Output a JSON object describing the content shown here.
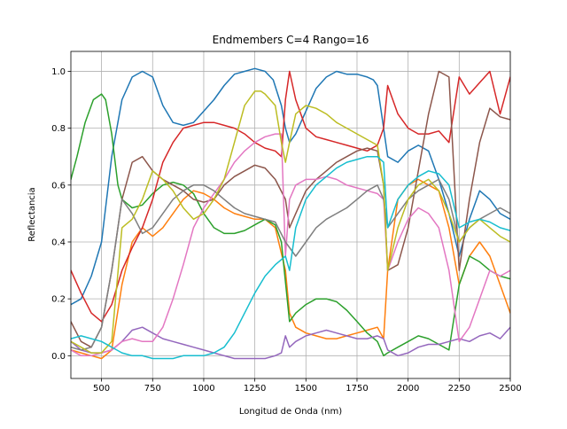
{
  "chart_data": {
    "type": "line",
    "title": "Endmembers C=4 Rango=16",
    "xlabel": "Longitud de Onda (nm)",
    "ylabel": "Reflectancia",
    "xlim": [
      350,
      2500
    ],
    "ylim": [
      -0.08,
      1.07
    ],
    "xticks": [
      500,
      750,
      1000,
      1250,
      1500,
      1750,
      2000,
      2250,
      2500
    ],
    "xtick_labels": [
      "500",
      "750",
      "1000",
      "1250",
      "1500",
      "1750",
      "2000",
      "2250",
      "2500"
    ],
    "yticks": [
      0.0,
      0.2,
      0.4,
      0.6,
      0.8,
      1.0
    ],
    "ytick_labels": [
      "0.0",
      "0.2",
      "0.4",
      "0.6",
      "0.8",
      "1.0"
    ],
    "grid": true,
    "legend": "none",
    "colors": [
      "#1f77b4",
      "#ff7f0e",
      "#2ca02c",
      "#d62728",
      "#9467bd",
      "#8c564b",
      "#e377c2",
      "#7f7f7f",
      "#bcbd22",
      "#17becf"
    ],
    "series": [
      {
        "color": "#1f77b4",
        "x": [
          350,
          400,
          450,
          500,
          550,
          600,
          650,
          700,
          750,
          800,
          850,
          900,
          950,
          1000,
          1050,
          1100,
          1150,
          1200,
          1250,
          1300,
          1340,
          1380,
          1400,
          1420,
          1450,
          1500,
          1550,
          1600,
          1650,
          1700,
          1750,
          1800,
          1830,
          1850,
          1870,
          1900,
          1950,
          2000,
          2050,
          2100,
          2150,
          2200,
          2250,
          2300,
          2350,
          2400,
          2450,
          2500
        ],
        "y": [
          0.18,
          0.2,
          0.28,
          0.4,
          0.7,
          0.9,
          0.98,
          1.0,
          0.98,
          0.88,
          0.82,
          0.81,
          0.82,
          0.86,
          0.9,
          0.95,
          0.99,
          1.0,
          1.01,
          1.0,
          0.97,
          0.88,
          0.8,
          0.75,
          0.78,
          0.86,
          0.94,
          0.98,
          1.0,
          0.99,
          0.99,
          0.98,
          0.97,
          0.95,
          0.85,
          0.7,
          0.68,
          0.72,
          0.74,
          0.72,
          0.62,
          0.5,
          0.35,
          0.48,
          0.58,
          0.55,
          0.5,
          0.48
        ]
      },
      {
        "color": "#ff7f0e",
        "x": [
          350,
          400,
          450,
          500,
          550,
          600,
          650,
          700,
          750,
          800,
          850,
          900,
          950,
          1000,
          1050,
          1100,
          1150,
          1200,
          1250,
          1300,
          1350,
          1400,
          1420,
          1450,
          1500,
          1550,
          1600,
          1650,
          1700,
          1750,
          1800,
          1850,
          1880,
          1900,
          1950,
          2000,
          2050,
          2100,
          2150,
          2200,
          2250,
          2300,
          2350,
          2400,
          2450,
          2500
        ],
        "y": [
          0.02,
          0.01,
          0.0,
          -0.01,
          0.02,
          0.25,
          0.4,
          0.45,
          0.42,
          0.45,
          0.5,
          0.55,
          0.58,
          0.57,
          0.55,
          0.52,
          0.5,
          0.49,
          0.48,
          0.48,
          0.45,
          0.3,
          0.15,
          0.1,
          0.08,
          0.07,
          0.06,
          0.06,
          0.07,
          0.08,
          0.09,
          0.1,
          0.06,
          0.3,
          0.55,
          0.6,
          0.62,
          0.6,
          0.58,
          0.45,
          0.25,
          0.35,
          0.4,
          0.35,
          0.25,
          0.15
        ]
      },
      {
        "color": "#2ca02c",
        "x": [
          350,
          380,
          420,
          460,
          500,
          520,
          550,
          580,
          600,
          650,
          700,
          750,
          800,
          850,
          900,
          950,
          1000,
          1050,
          1100,
          1150,
          1200,
          1250,
          1300,
          1350,
          1380,
          1420,
          1450,
          1500,
          1550,
          1600,
          1650,
          1700,
          1750,
          1800,
          1850,
          1880,
          1900,
          1950,
          2000,
          2050,
          2100,
          2150,
          2200,
          2250,
          2300,
          2350,
          2400,
          2450,
          2500
        ],
        "y": [
          0.62,
          0.7,
          0.82,
          0.9,
          0.92,
          0.9,
          0.78,
          0.6,
          0.55,
          0.52,
          0.53,
          0.57,
          0.6,
          0.61,
          0.6,
          0.57,
          0.5,
          0.45,
          0.43,
          0.43,
          0.44,
          0.46,
          0.48,
          0.46,
          0.4,
          0.12,
          0.15,
          0.18,
          0.2,
          0.2,
          0.19,
          0.16,
          0.12,
          0.08,
          0.05,
          0.0,
          0.01,
          0.03,
          0.05,
          0.07,
          0.06,
          0.04,
          0.02,
          0.25,
          0.35,
          0.33,
          0.3,
          0.28,
          0.27
        ]
      },
      {
        "color": "#d62728",
        "x": [
          350,
          400,
          450,
          500,
          550,
          600,
          650,
          700,
          750,
          800,
          850,
          900,
          950,
          1000,
          1050,
          1100,
          1150,
          1200,
          1250,
          1300,
          1350,
          1380,
          1400,
          1420,
          1450,
          1500,
          1550,
          1600,
          1650,
          1700,
          1750,
          1800,
          1850,
          1880,
          1900,
          1950,
          2000,
          2050,
          2100,
          2150,
          2200,
          2250,
          2300,
          2350,
          2400,
          2450,
          2500
        ],
        "y": [
          0.3,
          0.22,
          0.15,
          0.12,
          0.18,
          0.3,
          0.38,
          0.45,
          0.55,
          0.68,
          0.75,
          0.8,
          0.81,
          0.82,
          0.82,
          0.81,
          0.8,
          0.78,
          0.75,
          0.73,
          0.72,
          0.7,
          0.9,
          1.0,
          0.9,
          0.8,
          0.77,
          0.76,
          0.75,
          0.74,
          0.73,
          0.72,
          0.74,
          0.8,
          0.95,
          0.85,
          0.8,
          0.78,
          0.78,
          0.79,
          0.75,
          0.98,
          0.92,
          0.96,
          1.0,
          0.85,
          0.98
        ]
      },
      {
        "color": "#9467bd",
        "x": [
          350,
          400,
          450,
          500,
          550,
          600,
          650,
          700,
          750,
          800,
          850,
          900,
          950,
          1000,
          1050,
          1100,
          1150,
          1200,
          1250,
          1300,
          1350,
          1380,
          1400,
          1420,
          1450,
          1500,
          1550,
          1600,
          1650,
          1700,
          1750,
          1800,
          1850,
          1880,
          1900,
          1950,
          2000,
          2050,
          2100,
          2150,
          2200,
          2250,
          2300,
          2350,
          2400,
          2450,
          2500
        ],
        "y": [
          0.05,
          0.02,
          0.01,
          0.01,
          0.02,
          0.05,
          0.09,
          0.1,
          0.08,
          0.06,
          0.05,
          0.04,
          0.03,
          0.02,
          0.01,
          0.0,
          -0.01,
          -0.01,
          -0.01,
          -0.01,
          0.0,
          0.01,
          0.07,
          0.03,
          0.05,
          0.07,
          0.08,
          0.09,
          0.08,
          0.07,
          0.06,
          0.06,
          0.07,
          0.06,
          0.02,
          0.0,
          0.01,
          0.03,
          0.04,
          0.04,
          0.05,
          0.06,
          0.05,
          0.07,
          0.08,
          0.06,
          0.1
        ]
      },
      {
        "color": "#8c564b",
        "x": [
          350,
          400,
          450,
          500,
          550,
          600,
          650,
          700,
          750,
          800,
          850,
          900,
          950,
          1000,
          1050,
          1100,
          1150,
          1200,
          1250,
          1300,
          1350,
          1400,
          1420,
          1450,
          1500,
          1550,
          1600,
          1650,
          1700,
          1750,
          1800,
          1850,
          1880,
          1900,
          1950,
          2000,
          2050,
          2100,
          2150,
          2200,
          2250,
          2300,
          2350,
          2400,
          2450,
          2500
        ],
        "y": [
          0.12,
          0.05,
          0.03,
          0.1,
          0.3,
          0.55,
          0.68,
          0.7,
          0.65,
          0.62,
          0.6,
          0.58,
          0.55,
          0.54,
          0.55,
          0.6,
          0.63,
          0.65,
          0.67,
          0.66,
          0.62,
          0.55,
          0.45,
          0.5,
          0.58,
          0.62,
          0.65,
          0.68,
          0.7,
          0.72,
          0.73,
          0.72,
          0.6,
          0.3,
          0.32,
          0.45,
          0.65,
          0.85,
          1.0,
          0.98,
          0.3,
          0.55,
          0.75,
          0.87,
          0.84,
          0.83
        ]
      },
      {
        "color": "#e377c2",
        "x": [
          350,
          400,
          450,
          500,
          550,
          600,
          650,
          700,
          750,
          800,
          850,
          900,
          950,
          1000,
          1050,
          1100,
          1150,
          1200,
          1250,
          1300,
          1350,
          1380,
          1400,
          1420,
          1450,
          1500,
          1550,
          1600,
          1650,
          1700,
          1750,
          1800,
          1850,
          1880,
          1900,
          1950,
          2000,
          2050,
          2100,
          2150,
          2200,
          2250,
          2300,
          2350,
          2400,
          2450,
          2500
        ],
        "y": [
          0.02,
          0.0,
          0.0,
          0.01,
          0.02,
          0.05,
          0.06,
          0.05,
          0.05,
          0.1,
          0.2,
          0.32,
          0.45,
          0.52,
          0.57,
          0.62,
          0.68,
          0.72,
          0.75,
          0.77,
          0.78,
          0.78,
          0.35,
          0.55,
          0.6,
          0.62,
          0.62,
          0.63,
          0.62,
          0.6,
          0.59,
          0.58,
          0.57,
          0.55,
          0.3,
          0.4,
          0.48,
          0.52,
          0.5,
          0.45,
          0.3,
          0.05,
          0.1,
          0.2,
          0.3,
          0.28,
          0.3
        ]
      },
      {
        "color": "#7f7f7f",
        "x": [
          350,
          400,
          450,
          500,
          550,
          600,
          650,
          700,
          750,
          800,
          850,
          900,
          950,
          1000,
          1050,
          1100,
          1150,
          1200,
          1250,
          1300,
          1350,
          1400,
          1450,
          1500,
          1550,
          1600,
          1650,
          1700,
          1750,
          1800,
          1850,
          1880,
          1900,
          1950,
          2000,
          2050,
          2100,
          2150,
          2200,
          2250,
          2300,
          2350,
          2400,
          2450,
          2500
        ],
        "y": [
          0.03,
          0.02,
          0.03,
          0.1,
          0.3,
          0.55,
          0.5,
          0.43,
          0.45,
          0.5,
          0.55,
          0.58,
          0.6,
          0.6,
          0.58,
          0.55,
          0.52,
          0.5,
          0.49,
          0.48,
          0.47,
          0.4,
          0.35,
          0.4,
          0.45,
          0.48,
          0.5,
          0.52,
          0.55,
          0.58,
          0.6,
          0.55,
          0.45,
          0.5,
          0.55,
          0.58,
          0.6,
          0.62,
          0.55,
          0.4,
          0.45,
          0.48,
          0.5,
          0.52,
          0.5
        ]
      },
      {
        "color": "#bcbd22",
        "x": [
          350,
          400,
          450,
          500,
          550,
          600,
          650,
          700,
          750,
          800,
          850,
          900,
          950,
          1000,
          1050,
          1100,
          1150,
          1200,
          1250,
          1280,
          1300,
          1350,
          1380,
          1400,
          1420,
          1450,
          1500,
          1550,
          1600,
          1650,
          1700,
          1750,
          1800,
          1850,
          1880,
          1900,
          1950,
          2000,
          2050,
          2100,
          2150,
          2200,
          2250,
          2300,
          2350,
          2400,
          2450,
          2500
        ],
        "y": [
          0.05,
          0.03,
          0.01,
          0.01,
          0.05,
          0.45,
          0.48,
          0.55,
          0.65,
          0.62,
          0.58,
          0.52,
          0.48,
          0.5,
          0.55,
          0.62,
          0.75,
          0.88,
          0.93,
          0.93,
          0.92,
          0.88,
          0.75,
          0.68,
          0.75,
          0.85,
          0.88,
          0.87,
          0.85,
          0.82,
          0.8,
          0.78,
          0.76,
          0.74,
          0.6,
          0.3,
          0.45,
          0.55,
          0.6,
          0.62,
          0.58,
          0.5,
          0.4,
          0.45,
          0.48,
          0.45,
          0.42,
          0.4
        ]
      },
      {
        "color": "#17becf",
        "x": [
          350,
          400,
          450,
          500,
          550,
          600,
          650,
          700,
          750,
          800,
          850,
          900,
          950,
          1000,
          1050,
          1100,
          1150,
          1200,
          1250,
          1300,
          1350,
          1400,
          1420,
          1450,
          1500,
          1550,
          1600,
          1650,
          1700,
          1750,
          1800,
          1850,
          1880,
          1900,
          1950,
          2000,
          2050,
          2100,
          2150,
          2200,
          2250,
          2300,
          2350,
          2400,
          2450,
          2500
        ],
        "y": [
          0.06,
          0.07,
          0.06,
          0.05,
          0.03,
          0.01,
          0.0,
          0.0,
          -0.01,
          -0.01,
          -0.01,
          0.0,
          0.0,
          0.0,
          0.01,
          0.03,
          0.08,
          0.15,
          0.22,
          0.28,
          0.32,
          0.35,
          0.3,
          0.45,
          0.55,
          0.6,
          0.63,
          0.66,
          0.68,
          0.69,
          0.7,
          0.7,
          0.68,
          0.45,
          0.55,
          0.6,
          0.63,
          0.65,
          0.64,
          0.6,
          0.45,
          0.47,
          0.48,
          0.47,
          0.45,
          0.44
        ]
      }
    ]
  }
}
